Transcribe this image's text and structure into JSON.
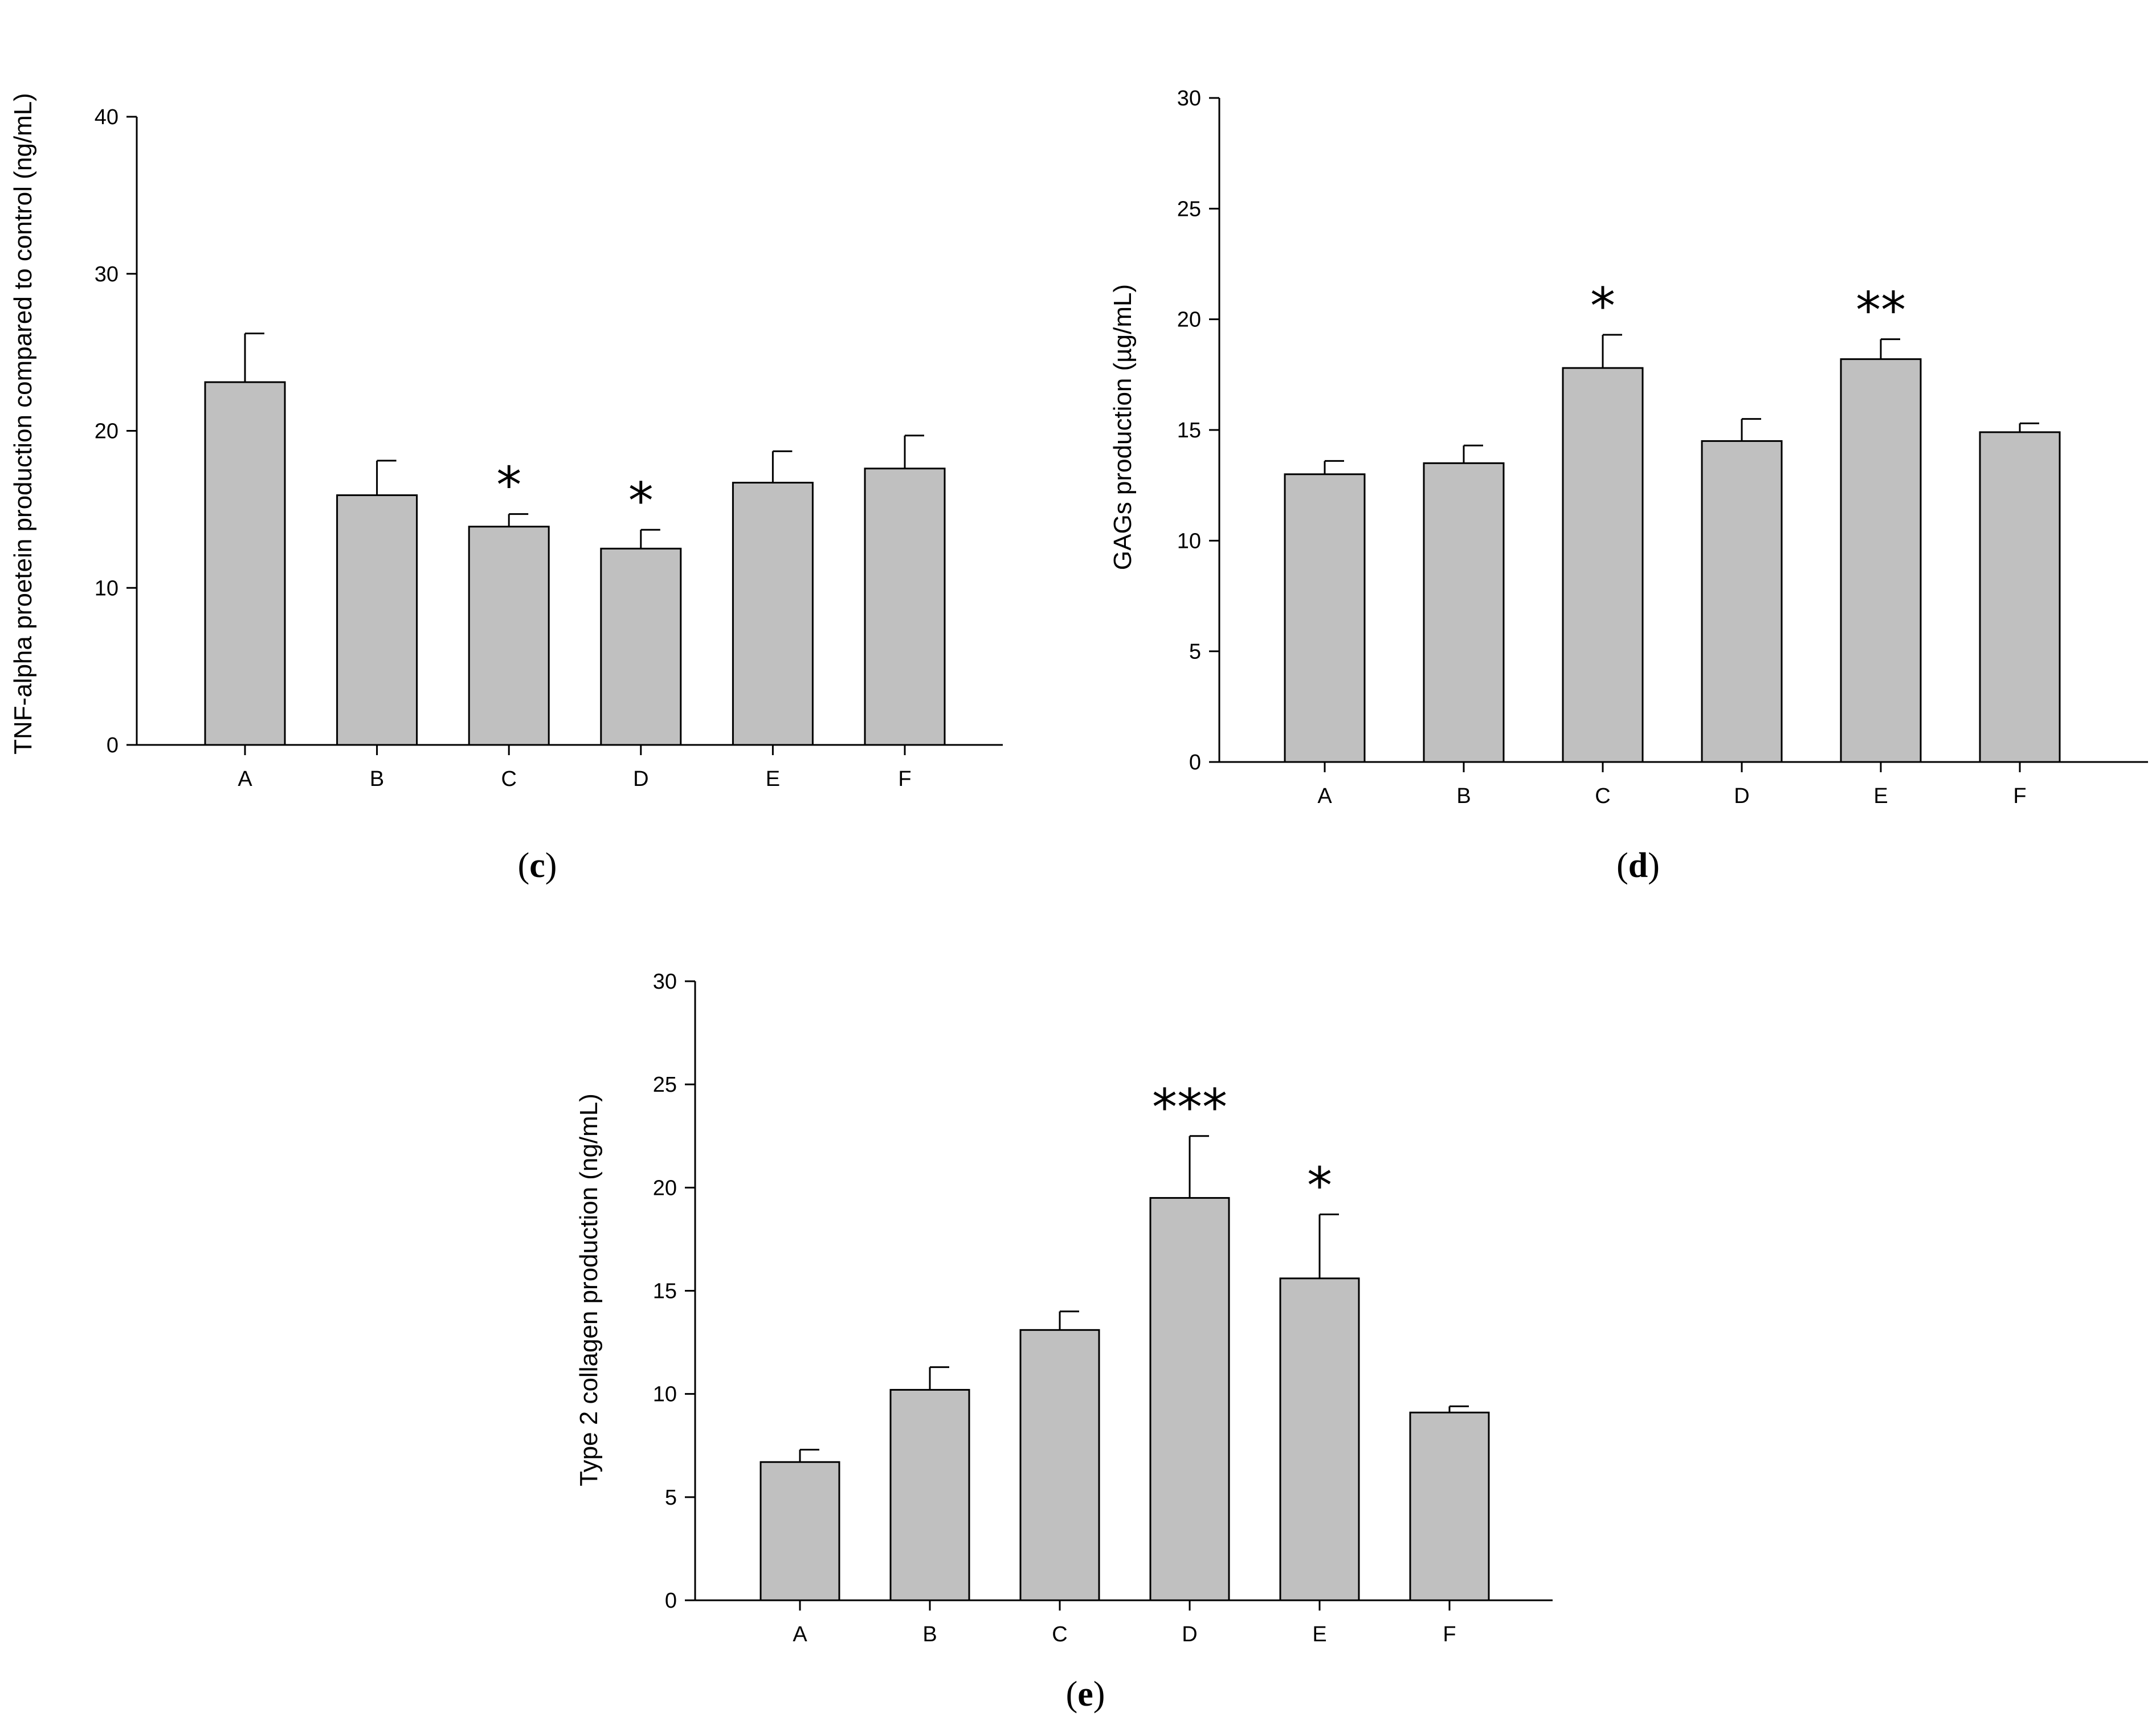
{
  "chart_data": [
    {
      "panel": "c",
      "type": "bar",
      "ylabel": "TNF-alpha proetein production compared to control (ng/mL)",
      "categories": [
        "A",
        "B",
        "C",
        "D",
        "E",
        "F"
      ],
      "values": [
        23.1,
        15.9,
        13.9,
        12.5,
        16.7,
        17.6
      ],
      "errors": [
        3.1,
        2.2,
        0.8,
        1.2,
        2.0,
        2.1
      ],
      "significance": [
        "",
        "",
        "*",
        "*",
        "",
        ""
      ],
      "ylim": [
        0,
        40
      ],
      "yticks": [
        0,
        10,
        20,
        30,
        40
      ],
      "bar_color": "#c0c0c0"
    },
    {
      "panel": "d",
      "type": "bar",
      "ylabel": "GAGs production (µg/mL)",
      "categories": [
        "A",
        "B",
        "C",
        "D",
        "E",
        "F"
      ],
      "values": [
        13.0,
        13.5,
        17.8,
        14.5,
        18.2,
        14.9
      ],
      "errors": [
        0.6,
        0.8,
        1.5,
        1.0,
        0.9,
        0.4
      ],
      "significance": [
        "",
        "",
        "*",
        "",
        "**",
        ""
      ],
      "ylim": [
        0,
        30
      ],
      "yticks": [
        0,
        5,
        10,
        15,
        20,
        25,
        30
      ],
      "bar_color": "#c0c0c0"
    },
    {
      "panel": "e",
      "type": "bar",
      "ylabel": "Type 2 collagen production (ng/mL)",
      "categories": [
        "A",
        "B",
        "C",
        "D",
        "E",
        "F"
      ],
      "values": [
        6.7,
        10.2,
        13.1,
        19.5,
        15.6,
        9.1
      ],
      "errors": [
        0.6,
        1.1,
        0.9,
        3.0,
        3.1,
        0.3
      ],
      "significance": [
        "",
        "",
        "",
        "***",
        "*",
        ""
      ],
      "ylim": [
        0,
        30
      ],
      "yticks": [
        0,
        5,
        10,
        15,
        20,
        25,
        30
      ],
      "bar_color": "#c0c0c0"
    }
  ],
  "panel_labels": {
    "c": {
      "open": "(",
      "letter": "c",
      "close": ")"
    },
    "d": {
      "open": "(",
      "letter": "d",
      "close": ")"
    },
    "e": {
      "open": "(",
      "letter": "e",
      "close": ")"
    }
  }
}
